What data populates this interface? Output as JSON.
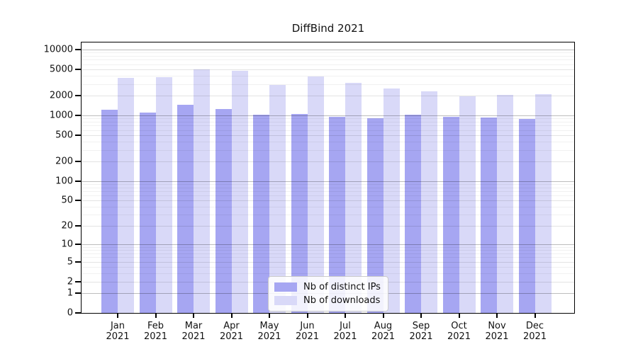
{
  "title": "DiffBind 2021",
  "chart_data": {
    "type": "bar",
    "title": "DiffBind 2021",
    "categories": [
      "Jan",
      "Feb",
      "Mar",
      "Apr",
      "May",
      "Jun",
      "Jul",
      "Aug",
      "Sep",
      "Oct",
      "Nov",
      "Dec"
    ],
    "year_label": "2021",
    "series": [
      {
        "name": "Nb of distinct IPs",
        "color": "#a6a6f2",
        "values": [
          1220,
          1100,
          1450,
          1250,
          1030,
          1050,
          950,
          910,
          1030,
          950,
          930,
          890
        ]
      },
      {
        "name": "Nb of downloads",
        "color": "#d9d9f8",
        "values": [
          3700,
          3800,
          5000,
          4750,
          2900,
          3900,
          3100,
          2550,
          2350,
          1950,
          2050,
          2100
        ]
      }
    ],
    "xlabel": "",
    "ylabel": "",
    "y_axis": {
      "scale": "log10(1+x)",
      "tick_values": [
        0,
        1,
        2,
        5,
        10,
        20,
        50,
        100,
        200,
        500,
        1000,
        2000,
        5000,
        10000
      ],
      "tick_labels": [
        "0",
        "1",
        "2",
        "5",
        "10",
        "20",
        "50",
        "100",
        "200",
        "500",
        "1000",
        "2000",
        "5000",
        "10000"
      ],
      "ylim": [
        0,
        12800
      ]
    },
    "grid": "on",
    "legend_position": "bottom-center"
  }
}
